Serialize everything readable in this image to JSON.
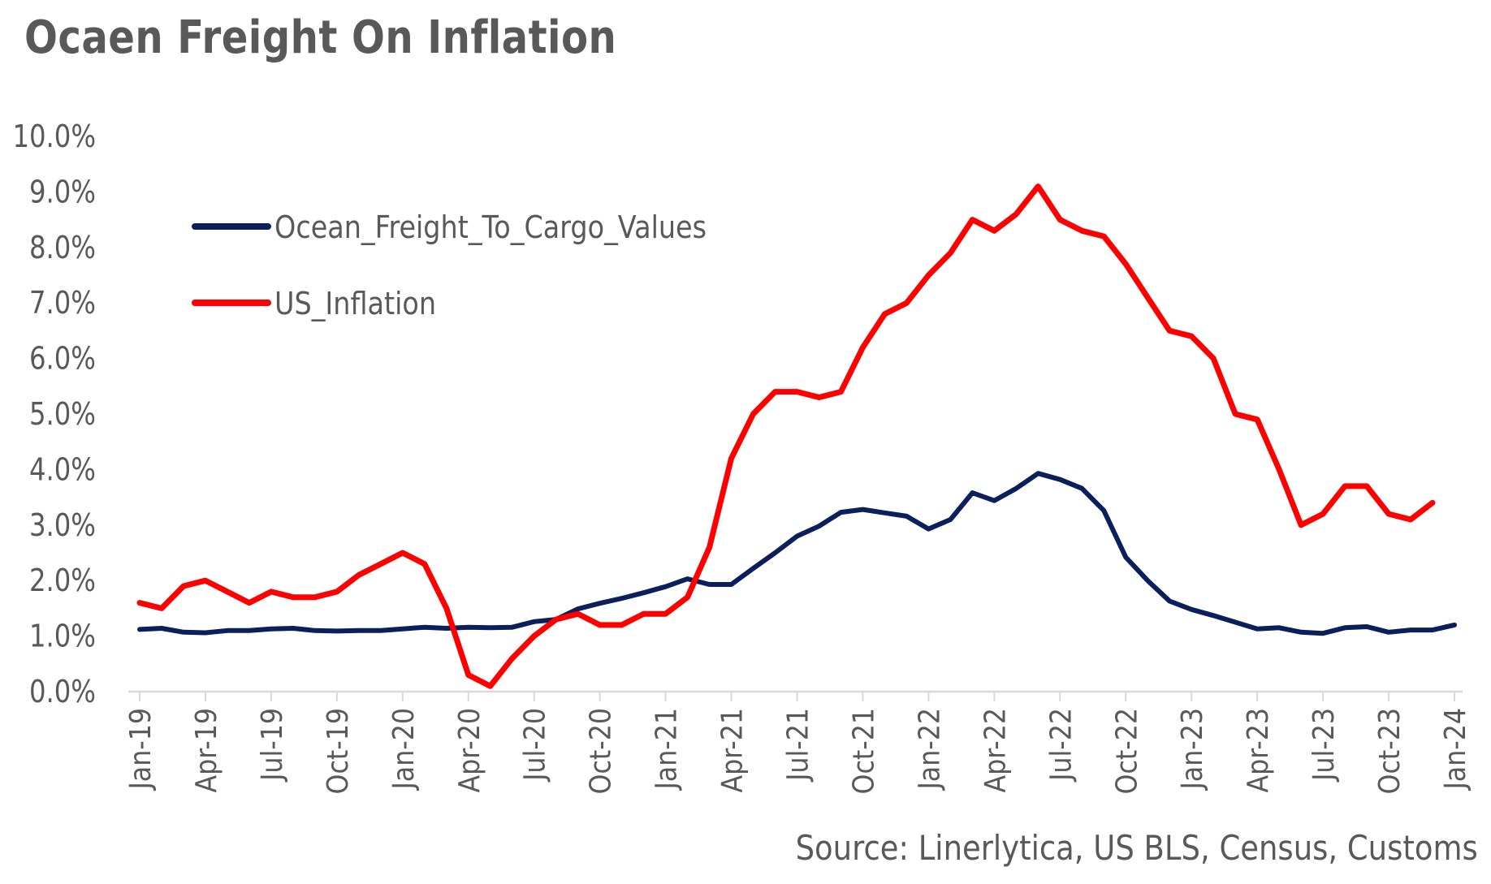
{
  "title": "Ocaen Freight On Inflation",
  "source": "Source: Linerlytica, US BLS, Census, Customs",
  "colors": {
    "ocean": "#0a1f5c",
    "inflation": "#ff0000",
    "text": "#595959",
    "axis": "#d9d9d9"
  },
  "chart_data": {
    "type": "line",
    "title": "Ocaen Freight On Inflation",
    "xlabel": "",
    "ylabel": "",
    "ylim": [
      0,
      10
    ],
    "y_ticks": [
      "0.0%",
      "1.0%",
      "2.0%",
      "3.0%",
      "4.0%",
      "5.0%",
      "6.0%",
      "7.0%",
      "8.0%",
      "9.0%",
      "10.0%"
    ],
    "x_tick_labels": [
      "Jan-19",
      "Apr-19",
      "Jul-19",
      "Oct-19",
      "Jan-20",
      "Apr-20",
      "Jul-20",
      "Oct-20",
      "Jan-21",
      "Apr-21",
      "Jul-21",
      "Oct-21",
      "Jan-22",
      "Apr-22",
      "Jul-22",
      "Oct-22",
      "Jan-23",
      "Apr-23",
      "Jul-23",
      "Oct-23",
      "Jan-24"
    ],
    "x_months_total": 61,
    "legend_position": "top-left",
    "series": [
      {
        "name": "Ocean_Freight_To_Cargo_Values",
        "color": "#0a1f5c",
        "values": [
          1.12,
          1.14,
          1.07,
          1.06,
          1.1,
          1.1,
          1.13,
          1.14,
          1.1,
          1.09,
          1.1,
          1.1,
          1.13,
          1.16,
          1.14,
          1.16,
          1.15,
          1.16,
          1.26,
          1.3,
          1.49,
          1.59,
          1.68,
          1.78,
          1.89,
          2.03,
          1.93,
          1.93,
          2.22,
          2.5,
          2.8,
          2.98,
          3.23,
          3.28,
          3.22,
          3.16,
          2.93,
          3.1,
          3.58,
          3.44,
          3.66,
          3.93,
          3.82,
          3.66,
          3.26,
          2.42,
          2.0,
          1.63,
          1.48,
          1.37,
          1.25,
          1.13,
          1.15,
          1.07,
          1.05,
          1.15,
          1.17,
          1.07,
          1.11,
          1.11,
          1.2
        ]
      },
      {
        "name": "US_Inflation",
        "color": "#ff0000",
        "values": [
          1.6,
          1.5,
          1.9,
          2.0,
          1.8,
          1.6,
          1.8,
          1.7,
          1.7,
          1.8,
          2.1,
          2.3,
          2.5,
          2.3,
          1.5,
          0.3,
          0.1,
          0.6,
          1.0,
          1.3,
          1.4,
          1.2,
          1.2,
          1.4,
          1.4,
          1.7,
          2.6,
          4.2,
          5.0,
          5.4,
          5.4,
          5.3,
          5.4,
          6.2,
          6.8,
          7.0,
          7.5,
          7.9,
          8.5,
          8.3,
          8.6,
          9.1,
          8.5,
          8.3,
          8.2,
          7.7,
          7.1,
          6.5,
          6.4,
          6.0,
          5.0,
          4.9,
          4.0,
          3.0,
          3.2,
          3.7,
          3.7,
          3.2,
          3.1,
          3.4
        ]
      }
    ]
  }
}
